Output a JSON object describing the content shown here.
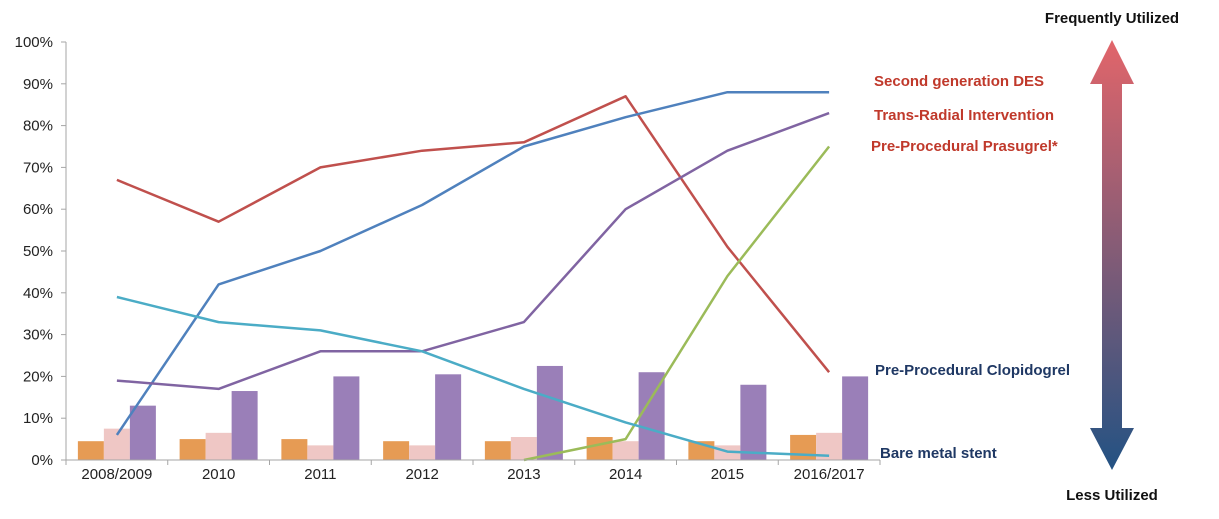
{
  "chart_data": {
    "type": "line",
    "categories": [
      "2008/2009",
      "2010",
      "2011",
      "2012",
      "2013",
      "2014",
      "2015",
      "2016/2017"
    ],
    "y_tick_labels": [
      "0%",
      "10%",
      "20%",
      "30%",
      "40%",
      "50%",
      "60%",
      "70%",
      "80%",
      "90%",
      "100%"
    ],
    "ylim": [
      0,
      100
    ],
    "grid": false,
    "series": [
      {
        "name": "Second generation DES",
        "type": "line",
        "color": "#c0504d",
        "values": [
          67,
          57,
          70,
          74,
          76,
          87,
          51,
          21
        ]
      },
      {
        "name": "Trans-Radial Intervention",
        "type": "line",
        "color": "#4f81bd",
        "values": [
          6,
          42,
          50,
          61,
          75,
          82,
          88,
          88
        ]
      },
      {
        "name": "",
        "type": "line",
        "color": "#8064a2",
        "values": [
          19,
          17,
          26,
          26,
          33,
          60,
          74,
          83
        ]
      },
      {
        "name": "Pre-Procedural Prasugrel*",
        "type": "line",
        "color": "#9bbb59",
        "values": [
          null,
          null,
          null,
          null,
          0,
          5,
          44,
          75
        ]
      },
      {
        "name": "",
        "type": "line",
        "color": "#4bacc6",
        "values": [
          39,
          33,
          31,
          26,
          17,
          9,
          2,
          1
        ]
      },
      {
        "name": "",
        "type": "bar",
        "color": "#e69b54",
        "values": [
          4.5,
          5,
          5,
          4.5,
          4.5,
          5.5,
          4.5,
          6
        ]
      },
      {
        "name": "",
        "type": "bar",
        "color": "#efc7c5",
        "values": [
          7.5,
          6.5,
          3.5,
          3.5,
          5.5,
          4.5,
          3.5,
          6.5
        ]
      },
      {
        "name": "",
        "type": "bar",
        "color": "#9a7fb8",
        "values": [
          13,
          16.5,
          20,
          20.5,
          22.5,
          21,
          18,
          20
        ]
      }
    ],
    "side_labels": [
      {
        "text": "Second generation DES",
        "color": "#c0392b"
      },
      {
        "text": "Trans-Radial Intervention",
        "color": "#c0392b"
      },
      {
        "text": "Pre-Procedural Prasugrel*",
        "color": "#c0392b"
      },
      {
        "text": "Pre-Procedural Clopidogrel",
        "color": "#1f3864"
      },
      {
        "text": "Bare metal stent",
        "color": "#1f3864"
      }
    ],
    "scale": {
      "top": "Frequently  Utilized",
      "bottom": "Less  Utilized",
      "top_color": "#e2656a",
      "bottom_color": "#235283"
    },
    "axis_color": "#a6a6a6"
  }
}
